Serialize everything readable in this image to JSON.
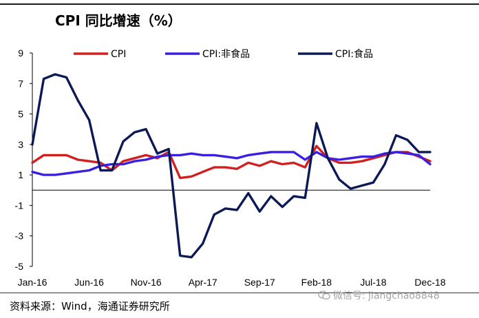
{
  "title": "CPI 同比增速（%）",
  "source": "资料来源：Wind，海通证券研究所",
  "watermark": "微信号: jiangchao8848",
  "chart_data": {
    "type": "line",
    "title": "CPI 同比增速（%）",
    "xlabel": "",
    "ylabel": "",
    "ylim": [
      -5,
      9
    ],
    "yticks": [
      9,
      7,
      5,
      3,
      1,
      -1,
      -3,
      -5
    ],
    "categories": [
      "Jan-16",
      "Feb-16",
      "Mar-16",
      "Apr-16",
      "May-16",
      "Jun-16",
      "Jul-16",
      "Aug-16",
      "Sep-16",
      "Oct-16",
      "Nov-16",
      "Dec-16",
      "Jan-17",
      "Feb-17",
      "Mar-17",
      "Apr-17",
      "May-17",
      "Jun-17",
      "Jul-17",
      "Aug-17",
      "Sep-17",
      "Oct-17",
      "Nov-17",
      "Dec-17",
      "Jan-18",
      "Feb-18",
      "Mar-18",
      "Apr-18",
      "May-18",
      "Jun-18",
      "Jul-18",
      "Aug-18",
      "Sep-18",
      "Oct-18",
      "Nov-18",
      "Dec-18"
    ],
    "xtick_labels": [
      "Jan-16",
      "Jun-16",
      "Nov-16",
      "Apr-17",
      "Sep-17",
      "Feb-18",
      "Jul-18",
      "Dec-18"
    ],
    "grid": false,
    "legend_position": "top",
    "series": [
      {
        "name": "CPI",
        "color": "#d21f1f",
        "values": [
          1.8,
          2.3,
          2.3,
          2.3,
          2.0,
          1.9,
          1.8,
          1.3,
          1.9,
          2.1,
          2.3,
          2.1,
          2.5,
          0.8,
          0.9,
          1.2,
          1.5,
          1.5,
          1.4,
          1.8,
          1.6,
          1.9,
          1.7,
          1.8,
          1.5,
          2.9,
          2.1,
          1.8,
          1.8,
          1.9,
          2.1,
          2.3,
          2.5,
          2.5,
          2.2,
          1.9
        ]
      },
      {
        "name": "CPI:非食品",
        "color": "#3a1fe0",
        "values": [
          1.2,
          1.0,
          1.0,
          1.1,
          1.2,
          1.3,
          1.6,
          1.7,
          1.7,
          1.9,
          2.0,
          2.2,
          2.3,
          2.3,
          2.4,
          2.3,
          2.3,
          2.2,
          2.1,
          2.3,
          2.4,
          2.5,
          2.5,
          2.5,
          2.0,
          2.5,
          2.1,
          2.0,
          2.1,
          2.2,
          2.2,
          2.4,
          2.5,
          2.4,
          2.3,
          1.7
        ]
      },
      {
        "name": "CPI:食品",
        "color": "#0b1a55",
        "values": [
          3.0,
          7.3,
          7.6,
          7.4,
          5.9,
          4.6,
          1.3,
          1.3,
          3.2,
          3.8,
          4.0,
          2.4,
          2.7,
          -4.3,
          -4.4,
          -3.5,
          -1.6,
          -1.2,
          -1.3,
          -0.2,
          -1.4,
          -0.4,
          -1.1,
          -0.4,
          -0.5,
          4.4,
          2.1,
          0.7,
          0.1,
          0.3,
          0.5,
          1.7,
          3.6,
          3.3,
          2.5,
          2.5
        ]
      }
    ]
  }
}
